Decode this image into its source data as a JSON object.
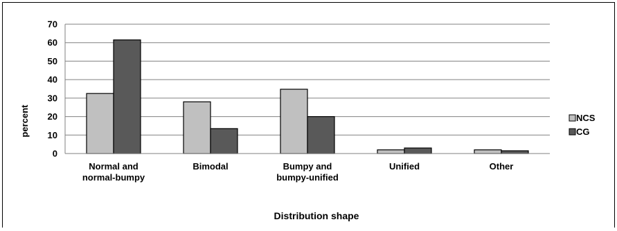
{
  "chart_data": {
    "type": "bar",
    "title": "",
    "xlabel": "Distribution shape",
    "ylabel": "percent",
    "ylim": [
      0,
      70
    ],
    "yticks": [
      0,
      10,
      20,
      30,
      40,
      50,
      60,
      70
    ],
    "grid": true,
    "legend_position": "right",
    "categories": [
      [
        "Normal and",
        "normal-bumpy"
      ],
      [
        "Bimodal"
      ],
      [
        "Bumpy and",
        "bumpy-unified"
      ],
      [
        "Unified"
      ],
      [
        "Other"
      ]
    ],
    "series": [
      {
        "name": "NCS",
        "color": "#c0c0c0",
        "values": [
          32.5,
          28,
          34.8,
          2,
          2
        ]
      },
      {
        "name": "CG",
        "color": "#595959",
        "values": [
          61.5,
          13.5,
          20,
          3,
          1.5
        ]
      }
    ]
  }
}
